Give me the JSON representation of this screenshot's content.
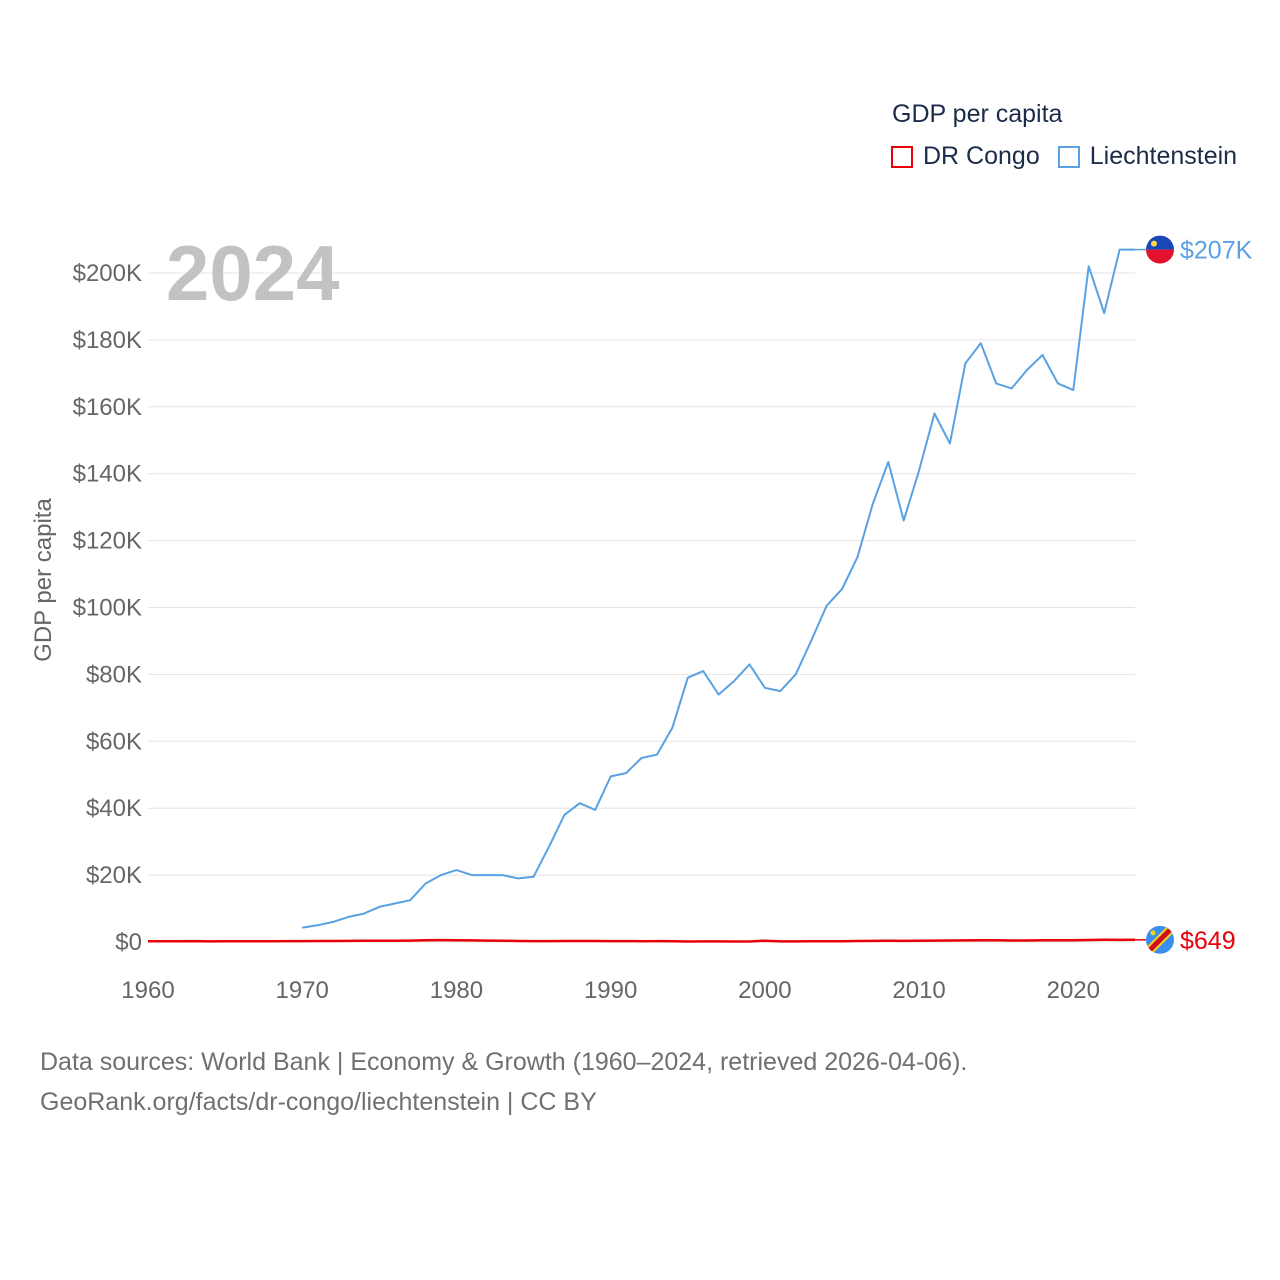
{
  "legend": {
    "title": "GDP per capita",
    "items": [
      {
        "name": "DR Congo",
        "color": "#e8000b"
      },
      {
        "name": "Liechtenstein",
        "color": "#5aa1e3"
      }
    ]
  },
  "footer": {
    "line1": "Data sources: World Bank | Economy & Growth (1960–2024, retrieved 2026-04-06).",
    "line2": "GeoRank.org/facts/dr-congo/liechtenstein | CC BY"
  },
  "chart_data": {
    "type": "line",
    "title": "GDP per capita",
    "year_label": "2024",
    "ylabel": "GDP per capita",
    "xlabel": "",
    "xlim": [
      1960,
      2024
    ],
    "ylim": [
      0,
      210000
    ],
    "x_ticks": [
      1960,
      1970,
      1980,
      1990,
      2000,
      2010,
      2020
    ],
    "y_ticks": [
      0,
      20000,
      40000,
      60000,
      80000,
      100000,
      120000,
      140000,
      160000,
      180000,
      200000
    ],
    "y_tick_labels": [
      "$0",
      "$20K",
      "$40K",
      "$60K",
      "$80K",
      "$100K",
      "$120K",
      "$140K",
      "$160K",
      "$180K",
      "$200K"
    ],
    "grid": true,
    "series": [
      {
        "name": "DR Congo",
        "color": "#e8000b",
        "end_label": "$649",
        "flag_icon": "dr-congo-flag-icon",
        "x": [
          1960,
          1961,
          1962,
          1963,
          1964,
          1965,
          1966,
          1967,
          1968,
          1969,
          1970,
          1971,
          1972,
          1973,
          1974,
          1975,
          1976,
          1977,
          1978,
          1979,
          1980,
          1981,
          1982,
          1983,
          1984,
          1985,
          1986,
          1987,
          1988,
          1989,
          1990,
          1991,
          1992,
          1993,
          1994,
          1995,
          1996,
          1997,
          1998,
          1999,
          2000,
          2001,
          2002,
          2003,
          2004,
          2005,
          2006,
          2007,
          2008,
          2009,
          2010,
          2011,
          2012,
          2013,
          2014,
          2015,
          2016,
          2017,
          2018,
          2019,
          2020,
          2021,
          2022,
          2023,
          2024
        ],
        "values": [
          220,
          200,
          240,
          280,
          180,
          220,
          250,
          200,
          230,
          260,
          270,
          290,
          300,
          340,
          380,
          390,
          370,
          430,
          520,
          560,
          540,
          470,
          430,
          380,
          300,
          280,
          260,
          290,
          310,
          300,
          280,
          270,
          250,
          270,
          200,
          160,
          170,
          180,
          160,
          140,
          390,
          180,
          190,
          200,
          220,
          250,
          290,
          330,
          370,
          320,
          390,
          420,
          450,
          490,
          530,
          510,
          440,
          460,
          520,
          540,
          530,
          590,
          650,
          620,
          649
        ]
      },
      {
        "name": "Liechtenstein",
        "color": "#5aa1e3",
        "end_label": "$207K",
        "flag_icon": "liechtenstein-flag-icon",
        "x": [
          1970,
          1971,
          1972,
          1973,
          1974,
          1975,
          1976,
          1977,
          1978,
          1979,
          1980,
          1981,
          1982,
          1983,
          1984,
          1985,
          1986,
          1987,
          1988,
          1989,
          1990,
          1991,
          1992,
          1993,
          1994,
          1995,
          1996,
          1997,
          1998,
          1999,
          2000,
          2001,
          2002,
          2003,
          2004,
          2005,
          2006,
          2007,
          2008,
          2009,
          2010,
          2011,
          2012,
          2013,
          2014,
          2015,
          2016,
          2017,
          2018,
          2019,
          2020,
          2021,
          2022,
          2023,
          2024
        ],
        "values": [
          4300,
          5000,
          6000,
          7500,
          8500,
          10500,
          11500,
          12500,
          17500,
          20000,
          21500,
          20000,
          20000,
          20000,
          19000,
          19500,
          28500,
          38000,
          41500,
          39500,
          49500,
          50500,
          55000,
          56000,
          64000,
          79000,
          81000,
          74000,
          78000,
          83000,
          76000,
          75000,
          80000,
          90000,
          100500,
          105500,
          115000,
          131000,
          143500,
          126000,
          141000,
          158000,
          149000,
          173000,
          179000,
          167000,
          165500,
          171000,
          175500,
          167000,
          165000,
          202000,
          188000,
          207000,
          207000
        ]
      }
    ]
  }
}
